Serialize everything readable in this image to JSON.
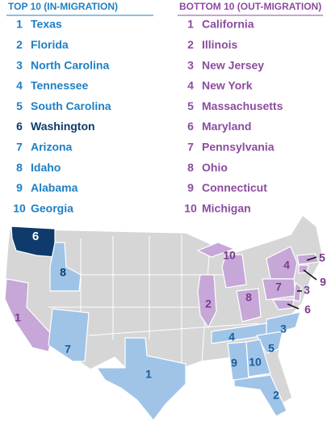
{
  "top": {
    "title": "TOP 10 (IN-MIGRATION)",
    "items": [
      {
        "rank": 1,
        "name": "Texas"
      },
      {
        "rank": 2,
        "name": "Florida"
      },
      {
        "rank": 3,
        "name": "North Carolina"
      },
      {
        "rank": 4,
        "name": "Tennessee"
      },
      {
        "rank": 5,
        "name": "South Carolina"
      },
      {
        "rank": 6,
        "name": "Washington"
      },
      {
        "rank": 7,
        "name": "Arizona"
      },
      {
        "rank": 8,
        "name": "Idaho"
      },
      {
        "rank": 9,
        "name": "Alabama"
      },
      {
        "rank": 10,
        "name": "Georgia"
      }
    ]
  },
  "bottom": {
    "title": "BOTTOM 10 (OUT-MIGRATION)",
    "items": [
      {
        "rank": 1,
        "name": "California"
      },
      {
        "rank": 2,
        "name": "Illinois"
      },
      {
        "rank": 3,
        "name": "New Jersey"
      },
      {
        "rank": 4,
        "name": "New York"
      },
      {
        "rank": 5,
        "name": "Massachusetts"
      },
      {
        "rank": 6,
        "name": "Maryland"
      },
      {
        "rank": 7,
        "name": "Pennsylvania"
      },
      {
        "rank": 8,
        "name": "Ohio"
      },
      {
        "rank": 9,
        "name": "Connecticut"
      },
      {
        "rank": 10,
        "name": "Michigan"
      }
    ]
  },
  "map": {
    "labels": [
      6,
      8,
      7,
      1,
      4,
      3,
      5,
      9,
      10,
      2,
      1,
      2,
      10,
      8,
      4,
      7,
      3,
      5,
      9,
      6
    ]
  }
}
